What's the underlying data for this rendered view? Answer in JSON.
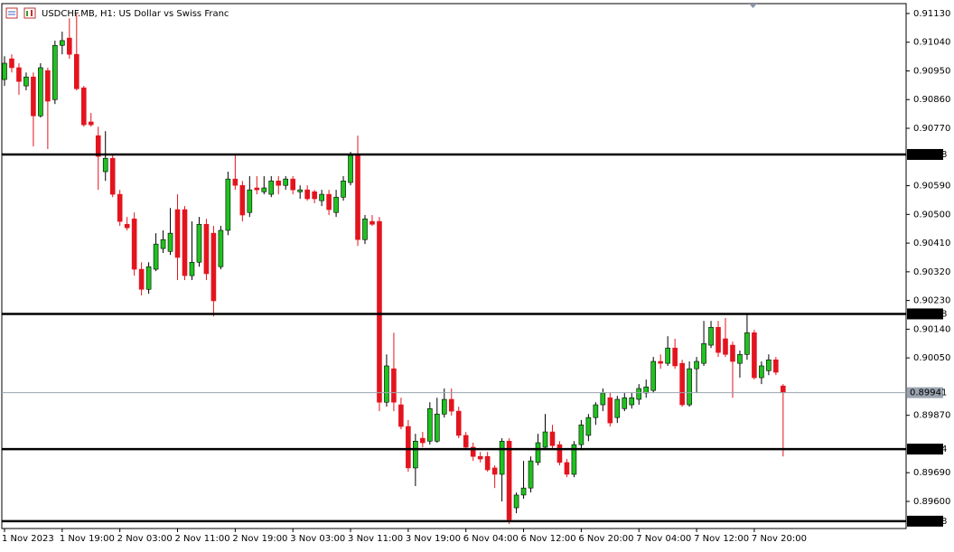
{
  "chart_data": {
    "type": "candlestick",
    "title": "USDCHF.MB, H1:  US Dollar vs Swiss Franc",
    "up_color": "#1fc21f",
    "down_color": "#e3141e",
    "ylim": [
      0.89515,
      0.91161
    ],
    "yticks": [
      {
        "value": 0.9113,
        "label": "0.91130"
      },
      {
        "value": 0.9104,
        "label": "0.91040"
      },
      {
        "value": 0.9095,
        "label": "0.90950"
      },
      {
        "value": 0.9086,
        "label": "0.90860"
      },
      {
        "value": 0.9077,
        "label": "0.90770"
      },
      {
        "value": 0.9059,
        "label": "0.90590"
      },
      {
        "value": 0.905,
        "label": "0.90500"
      },
      {
        "value": 0.9041,
        "label": "0.90410"
      },
      {
        "value": 0.9032,
        "label": "0.90320"
      },
      {
        "value": 0.9023,
        "label": "0.90230"
      },
      {
        "value": 0.9014,
        "label": "0.90140"
      },
      {
        "value": 0.9005,
        "label": "0.90050"
      },
      {
        "value": 0.8987,
        "label": "0.89870"
      },
      {
        "value": 0.8969,
        "label": "0.89690"
      },
      {
        "value": 0.896,
        "label": "0.89600"
      }
    ],
    "levels": [
      0.90688,
      0.90188,
      0.89764,
      0.89538
    ],
    "current_price": 0.89941,
    "x": [
      "1 Nov 2023",
      null,
      null,
      null,
      null,
      null,
      null,
      null,
      "1 Nov 19:00",
      null,
      null,
      null,
      null,
      null,
      null,
      null,
      "2 Nov 03:00",
      null,
      null,
      null,
      null,
      null,
      null,
      null,
      "2 Nov 11:00",
      null,
      null,
      null,
      null,
      null,
      null,
      null,
      "2 Nov 19:00",
      null,
      null,
      null,
      null,
      null,
      null,
      null,
      "3 Nov 03:00",
      null,
      null,
      null,
      null,
      null,
      null,
      null,
      "3 Nov 11:00",
      null,
      null,
      null,
      null,
      null,
      null,
      null,
      "3 Nov 19:00",
      null,
      null,
      null,
      null,
      null,
      null,
      null,
      "6 Nov 04:00",
      null,
      null,
      null,
      null,
      null,
      null,
      null,
      "6 Nov 12:00",
      null,
      null,
      null,
      null,
      null,
      null,
      null,
      "6 Nov 20:00",
      null,
      null,
      null,
      null,
      null,
      null,
      null,
      "7 Nov 04:00",
      null,
      null,
      null,
      null,
      null,
      null,
      null,
      "7 Nov 12:00",
      null,
      null,
      null,
      null,
      null,
      null,
      null,
      "7 Nov 20:00",
      null,
      null,
      null,
      null
    ],
    "open": [
      0.90923,
      0.90988,
      0.9096,
      0.90903,
      0.90931,
      0.90809,
      0.90951,
      0.9086,
      0.9103,
      0.91053,
      0.91002,
      0.90897,
      0.9079,
      0.90747,
      0.90634,
      0.90676,
      0.90563,
      0.90469,
      0.90486,
      0.90328,
      0.90265,
      0.90328,
      0.90393,
      0.90384,
      0.90515,
      0.90515,
      0.90308,
      0.9035,
      0.90469,
      0.90441,
      0.90336,
      0.9045,
      0.90611,
      0.90591,
      0.90506,
      0.90583,
      0.90571,
      0.90563,
      0.90605,
      0.90591,
      0.90611,
      0.90571,
      0.90577,
      0.90571,
      0.90543,
      0.90563,
      0.90506,
      0.90554,
      0.906,
      0.90685,
      0.90421,
      0.90478,
      0.90478,
      0.89911,
      0.90016,
      0.89903,
      0.89835,
      0.89705,
      0.89798,
      0.89789,
      0.89789,
      0.89874,
      0.8992,
      0.89883,
      0.89807,
      0.8977,
      0.89741,
      0.89741,
      0.89705,
      0.89685,
      0.89789,
      0.8958,
      0.8962,
      0.89642,
      0.89722,
      0.8977,
      0.89818,
      0.89778,
      0.89722,
      0.89685,
      0.89778,
      0.89807,
      0.89863,
      0.89903,
      0.89925,
      0.89863,
      0.89891,
      0.89903,
      0.8992,
      0.8994,
      0.89948,
      0.90039,
      0.90033,
      0.90081,
      0.90033,
      0.89903,
      0.90016,
      0.90033,
      0.9009,
      0.90146,
      0.9011,
      0.9009,
      0.90033,
      0.90061,
      0.90129,
      0.89988,
      0.9001,
      0.90044,
      0.89962
    ],
    "high": [
      0.90996,
      0.91002,
      0.90974,
      0.90945,
      0.90945,
      0.90974,
      0.9096,
      0.91045,
      0.91073,
      0.91115,
      0.9113,
      0.90903,
      0.90818,
      0.90775,
      0.90761,
      0.9069,
      0.90577,
      0.90492,
      0.90506,
      0.9035,
      0.9035,
      0.90441,
      0.9045,
      0.9052,
      0.90563,
      0.90526,
      0.90478,
      0.90492,
      0.90486,
      0.90464,
      0.90464,
      0.90634,
      0.90685,
      0.90605,
      0.9062,
      0.9062,
      0.9062,
      0.9062,
      0.9062,
      0.9062,
      0.9062,
      0.90591,
      0.90591,
      0.90577,
      0.90577,
      0.90577,
      0.90577,
      0.9062,
      0.90696,
      0.90747,
      0.90498,
      0.90498,
      0.90492,
      0.90061,
      0.90129,
      0.89925,
      0.89855,
      0.89812,
      0.89818,
      0.89911,
      0.89925,
      0.89954,
      0.89954,
      0.89897,
      0.89818,
      0.89784,
      0.89755,
      0.89755,
      0.89713,
      0.89798,
      0.89798,
      0.89628,
      0.89727,
      0.89741,
      0.89812,
      0.89874,
      0.8984,
      0.89789,
      0.89733,
      0.89789,
      0.89855,
      0.89874,
      0.89911,
      0.89954,
      0.8994,
      0.89931,
      0.8994,
      0.8994,
      0.89968,
      0.89982,
      0.90053,
      0.90061,
      0.90118,
      0.9011,
      0.90044,
      0.90039,
      0.90053,
      0.90166,
      0.90166,
      0.90166,
      0.90175,
      0.90101,
      0.90073,
      0.90186,
      0.90138,
      0.90039,
      0.90061,
      0.90053,
      0.89968
    ],
    "low": [
      0.90903,
      0.90945,
      0.90875,
      0.90889,
      0.90713,
      0.90804,
      0.90705,
      0.90846,
      0.91002,
      0.90988,
      0.90889,
      0.90775,
      0.90775,
      0.90577,
      0.90605,
      0.90554,
      0.90464,
      0.9045,
      0.90308,
      0.90246,
      0.90251,
      0.90322,
      0.90379,
      0.90373,
      0.90294,
      0.90294,
      0.90294,
      0.90336,
      0.90294,
      0.9018,
      0.90328,
      0.90435,
      0.90577,
      0.90478,
      0.90492,
      0.90563,
      0.90563,
      0.90554,
      0.90563,
      0.90577,
      0.90563,
      0.90549,
      0.90543,
      0.90535,
      0.90526,
      0.90498,
      0.90492,
      0.90543,
      0.90591,
      0.90401,
      0.90407,
      0.90464,
      0.89883,
      0.89897,
      0.89883,
      0.89826,
      0.89693,
      0.89648,
      0.8977,
      0.89778,
      0.89784,
      0.89863,
      0.89869,
      0.89798,
      0.89761,
      0.89727,
      0.89722,
      0.89693,
      0.89642,
      0.896,
      0.89529,
      0.89563,
      0.89608,
      0.89628,
      0.89713,
      0.89761,
      0.89761,
      0.89713,
      0.89676,
      0.89676,
      0.89761,
      0.89789,
      0.8984,
      0.89883,
      0.89835,
      0.89846,
      0.89883,
      0.89891,
      0.89903,
      0.89925,
      0.8994,
      0.90016,
      0.90025,
      0.90016,
      0.89897,
      0.89897,
      0.8994,
      0.90025,
      0.90081,
      0.90053,
      0.90053,
      0.89925,
      0.89988,
      0.90044,
      0.89982,
      0.89968,
      0.89996,
      0.89996,
      0.89741
    ],
    "close": [
      0.90974,
      0.9096,
      0.90917,
      0.90931,
      0.90809,
      0.9096,
      0.90855,
      0.9103,
      0.91045,
      0.91002,
      0.90894,
      0.90781,
      0.90781,
      0.90682,
      0.90676,
      0.90563,
      0.90478,
      0.90458,
      0.90328,
      0.90265,
      0.90336,
      0.90407,
      0.90421,
      0.90441,
      0.90365,
      0.90308,
      0.9035,
      0.90469,
      0.90314,
      0.90229,
      0.9045,
      0.90611,
      0.90591,
      0.90498,
      0.90577,
      0.90577,
      0.90583,
      0.90605,
      0.90591,
      0.90611,
      0.90577,
      0.90577,
      0.90549,
      0.90549,
      0.90563,
      0.90515,
      0.90554,
      0.90605,
      0.90685,
      0.90421,
      0.90486,
      0.90469,
      0.89911,
      0.90025,
      0.89911,
      0.89835,
      0.89705,
      0.89789,
      0.89784,
      0.89891,
      0.89874,
      0.8992,
      0.89883,
      0.89807,
      0.8977,
      0.89741,
      0.89733,
      0.89699,
      0.89685,
      0.89789,
      0.89543,
      0.8962,
      0.89642,
      0.89727,
      0.89784,
      0.89818,
      0.89775,
      0.89722,
      0.89685,
      0.89778,
      0.8984,
      0.89863,
      0.89903,
      0.8994,
      0.89846,
      0.8992,
      0.89925,
      0.89925,
      0.89954,
      0.89959,
      0.90039,
      0.90033,
      0.90081,
      0.90025,
      0.89903,
      0.90016,
      0.90039,
      0.90095,
      0.90146,
      0.90067,
      0.90061,
      0.90039,
      0.90061,
      0.90129,
      0.89988,
      0.90025,
      0.90044,
      0.90005,
      0.89941
    ]
  }
}
